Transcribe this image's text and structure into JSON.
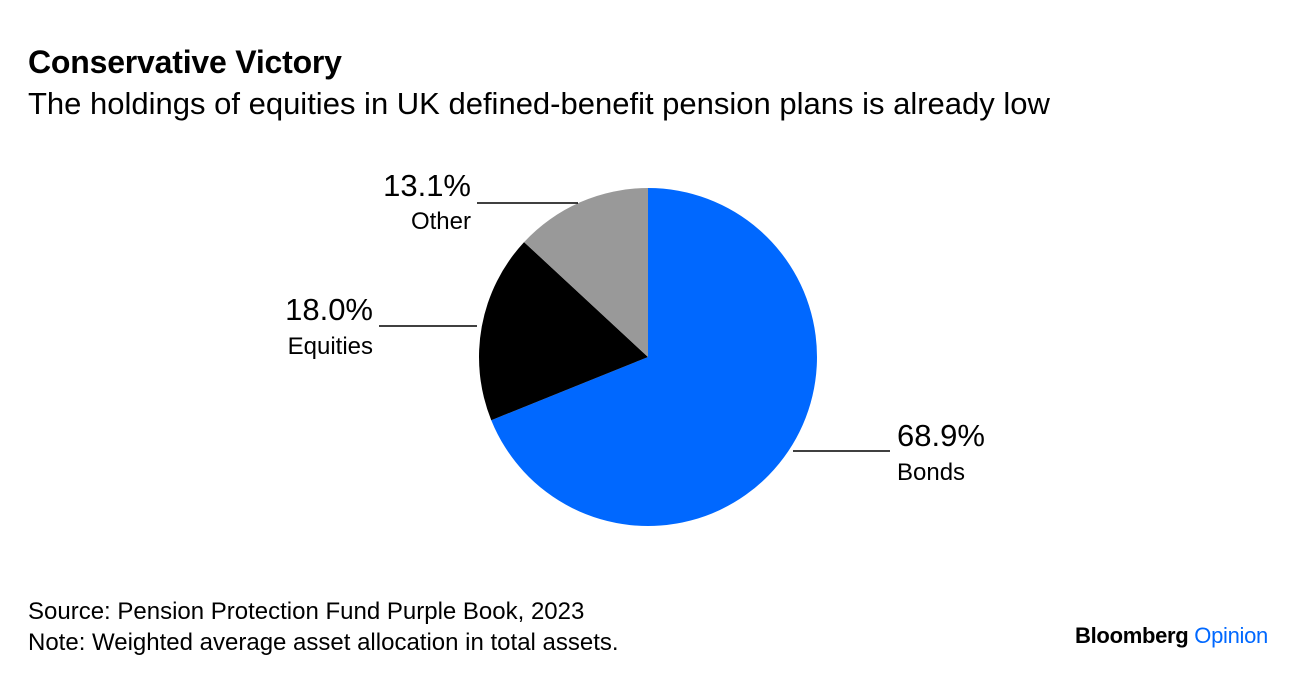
{
  "header": {
    "title": "Conservative Victory",
    "subtitle": "The holdings of equities in UK defined-benefit pension plans is already low"
  },
  "chart_data": {
    "type": "pie",
    "title": "Conservative Victory",
    "subtitle": "The holdings of equities in UK defined-benefit pension plans is already low",
    "slices": [
      {
        "label": "Bonds",
        "value": 68.9,
        "value_label": "68.9%",
        "color": "#0068ff"
      },
      {
        "label": "Equities",
        "value": 18.0,
        "value_label": "18.0%",
        "color": "#000000"
      },
      {
        "label": "Other",
        "value": 13.1,
        "value_label": "13.1%",
        "color": "#999999"
      }
    ],
    "start": "12 o'clock",
    "direction": "clockwise",
    "legend": "none"
  },
  "footer": {
    "source": "Source: Pension Protection Fund Purple Book, 2023",
    "note": "Note: Weighted average asset allocation in total assets."
  },
  "brand": {
    "name": "Bloomberg",
    "section": "Opinion",
    "name_color": "#000000",
    "section_color": "#0068ff"
  }
}
